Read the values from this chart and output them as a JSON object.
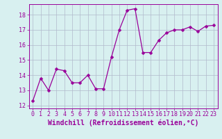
{
  "x": [
    0,
    1,
    2,
    3,
    4,
    5,
    6,
    7,
    8,
    9,
    10,
    11,
    12,
    13,
    14,
    15,
    16,
    17,
    18,
    19,
    20,
    21,
    22,
    23
  ],
  "y": [
    12.3,
    13.8,
    13.0,
    14.4,
    14.3,
    13.5,
    13.5,
    14.0,
    13.1,
    13.1,
    15.2,
    17.0,
    18.3,
    18.4,
    15.5,
    15.5,
    16.3,
    16.8,
    17.0,
    17.0,
    17.2,
    16.9,
    17.25,
    17.3
  ],
  "line_color": "#990099",
  "marker": "D",
  "marker_size": 2.5,
  "bg_color": "#d8f0f0",
  "grid_color": "#b0b8cc",
  "xlabel": "Windchill (Refroidissement éolien,°C)",
  "xlim": [
    -0.5,
    23.5
  ],
  "ylim": [
    11.8,
    18.7
  ],
  "yticks": [
    12,
    13,
    14,
    15,
    16,
    17,
    18
  ],
  "xtick_labels": [
    "0",
    "1",
    "2",
    "3",
    "4",
    "5",
    "6",
    "7",
    "8",
    "9",
    "10",
    "11",
    "12",
    "13",
    "14",
    "15",
    "16",
    "17",
    "18",
    "19",
    "20",
    "21",
    "22",
    "23"
  ],
  "xlabel_fontsize": 7,
  "tick_fontsize": 6
}
